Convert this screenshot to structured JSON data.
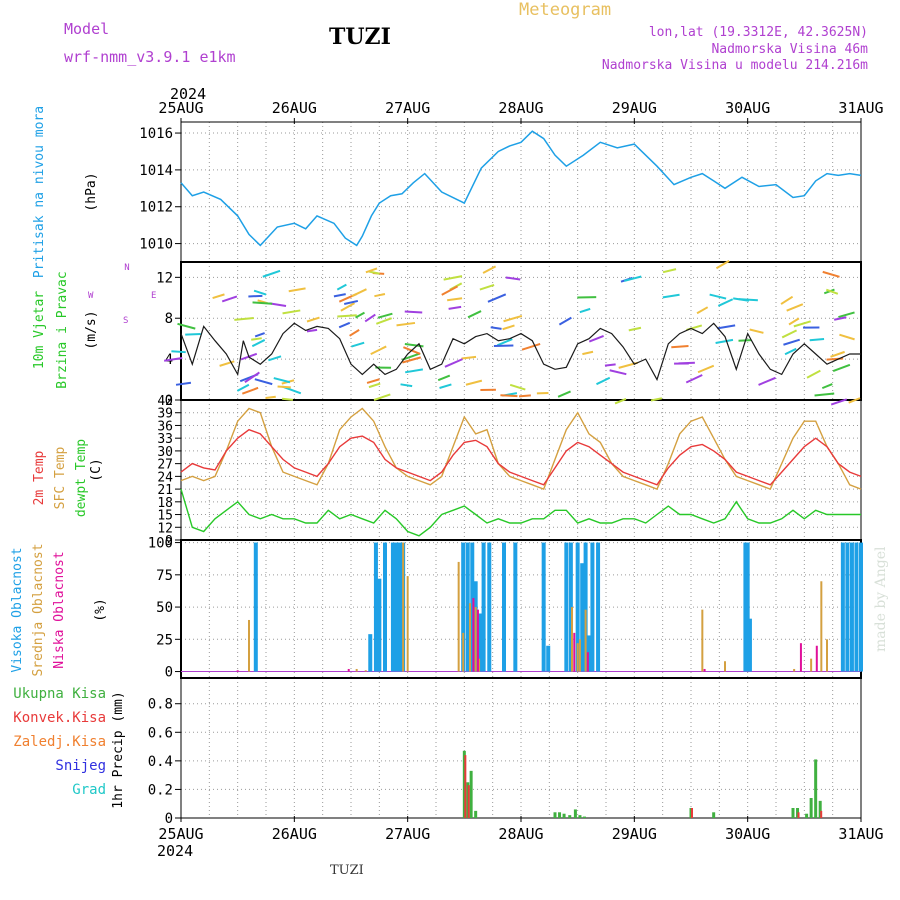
{
  "header": {
    "model_label": "Model",
    "model_name": "wrf-nmm_v3.9.1  e1km",
    "station": "TUZI",
    "product": "Meteogram",
    "lonlat": "lon,lat (19.3312E, 42.3625N)",
    "elevation": "Nadmorska Visina 46m",
    "model_elevation": "Nadmorska Visina u modelu 214.216m"
  },
  "footer": {
    "station": "TUZI",
    "credit": "made by Angel"
  },
  "colors": {
    "pressure": "#1ea0e6",
    "temp2m": "#e83a3a",
    "sfc": "#d4a040",
    "dew": "#28c828",
    "high": "#1ea0e6",
    "mid": "#d4a040",
    "low": "#e0109a",
    "total": "#40b040",
    "conv": "#e83a3a",
    "frozen": "#f08030",
    "snow": "#3030e0",
    "hail": "#20c8c8",
    "purple": "#b040d0",
    "gold": "#e8c060"
  },
  "chart_data": [
    {
      "type": "line",
      "title": "",
      "ylabel": [
        "Pritisak na nivou mora",
        "(hPa)"
      ],
      "xlabel": "",
      "x_ticks": [
        "25AUG",
        "26AUG",
        "27AUG",
        "28AUG",
        "29AUG",
        "30AUG",
        "31AUG"
      ],
      "year": "2024",
      "ylim": [
        1009,
        1016.6
      ],
      "yticks": [
        1010,
        1012,
        1014,
        1016
      ],
      "grid": true,
      "series": [
        {
          "name": "",
          "x": [
            0,
            0.1,
            0.2,
            0.35,
            0.5,
            0.6,
            0.7,
            0.85,
            1.0,
            1.1,
            1.2,
            1.35,
            1.45,
            1.55,
            1.6,
            1.68,
            1.75,
            1.85,
            1.95,
            2.05,
            2.15,
            2.3,
            2.5,
            2.65,
            2.8,
            2.9,
            3.0,
            3.1,
            3.2,
            3.3,
            3.4,
            3.55,
            3.7,
            3.85,
            4.0,
            4.1,
            4.2,
            4.35,
            4.5,
            4.6,
            4.7,
            4.8,
            4.95,
            5.1,
            5.25,
            5.4,
            5.5,
            5.6,
            5.7,
            5.8,
            5.9,
            6.0
          ],
          "values": [
            1013.3,
            1012.6,
            1012.8,
            1012.4,
            1011.5,
            1010.5,
            1009.9,
            1010.9,
            1011.1,
            1010.8,
            1011.5,
            1011.1,
            1010.3,
            1009.9,
            1010.4,
            1011.5,
            1012.2,
            1012.6,
            1012.7,
            1013.3,
            1013.8,
            1012.8,
            1012.2,
            1014.1,
            1015.0,
            1015.3,
            1015.5,
            1016.1,
            1015.7,
            1014.8,
            1014.2,
            1014.8,
            1015.5,
            1015.2,
            1015.4,
            1014.8,
            1014.2,
            1013.2,
            1013.6,
            1013.8,
            1013.4,
            1013.0,
            1013.6,
            1013.1,
            1013.2,
            1012.5,
            1012.6,
            1013.4,
            1013.8,
            1013.7,
            1013.8,
            1013.7
          ]
        }
      ]
    },
    {
      "type": "line",
      "title": "",
      "ylabel": [
        "10m Vjetar",
        "Brzina i Pravac",
        "(m/s)"
      ],
      "compass": [
        "N",
        "W",
        "E",
        "S"
      ],
      "ylim": [
        0,
        13.5
      ],
      "yticks": [
        0,
        4,
        8,
        12
      ],
      "grid": true,
      "series": [
        {
          "name": "",
          "x": [
            0,
            0.1,
            0.2,
            0.3,
            0.4,
            0.5,
            0.55,
            0.6,
            0.7,
            0.8,
            0.9,
            1.0,
            1.1,
            1.2,
            1.3,
            1.4,
            1.5,
            1.6,
            1.7,
            1.8,
            1.9,
            2.0,
            2.1,
            2.2,
            2.3,
            2.4,
            2.5,
            2.6,
            2.7,
            2.8,
            2.9,
            3.0,
            3.1,
            3.2,
            3.3,
            3.4,
            3.5,
            3.6,
            3.7,
            3.8,
            3.9,
            4.0,
            4.1,
            4.2,
            4.3,
            4.4,
            4.5,
            4.6,
            4.7,
            4.8,
            4.9,
            5.0,
            5.1,
            5.2,
            5.3,
            5.4,
            5.5,
            5.6,
            5.7,
            5.8,
            5.9,
            6.0
          ],
          "values": [
            6.5,
            3.5,
            7.2,
            5.8,
            4.5,
            2.5,
            5.8,
            4.2,
            3.5,
            4.5,
            6.5,
            7.5,
            6.8,
            7.2,
            7.0,
            6.0,
            3.5,
            2.5,
            3.5,
            2.5,
            3.0,
            4.5,
            5.5,
            3.0,
            3.5,
            6.0,
            5.5,
            6.2,
            6.5,
            5.8,
            6.0,
            6.5,
            5.8,
            3.5,
            3.0,
            3.2,
            5.5,
            6.0,
            7.0,
            6.5,
            5.2,
            3.5,
            4.0,
            2.0,
            5.5,
            6.5,
            7.0,
            6.5,
            7.5,
            6.2,
            3.0,
            6.5,
            4.5,
            3.0,
            2.5,
            4.5,
            5.5,
            4.5,
            3.5,
            4.0,
            4.5,
            4.5
          ]
        }
      ]
    },
    {
      "type": "line",
      "title": "",
      "ylabel": [
        "2m Temp",
        "SFC Temp",
        "dewpt Temp",
        "(C)"
      ],
      "ylim": [
        9,
        42
      ],
      "yticks": [
        9,
        12,
        15,
        18,
        21,
        24,
        27,
        30,
        33,
        36,
        39,
        42
      ],
      "grid": true,
      "series": [
        {
          "name": "2m Temp",
          "x": [
            0,
            0.1,
            0.2,
            0.3,
            0.4,
            0.5,
            0.6,
            0.7,
            0.8,
            0.9,
            1.0,
            1.1,
            1.2,
            1.3,
            1.4,
            1.5,
            1.6,
            1.7,
            1.8,
            1.9,
            2.0,
            2.1,
            2.2,
            2.3,
            2.4,
            2.5,
            2.6,
            2.7,
            2.8,
            2.9,
            3.0,
            3.1,
            3.2,
            3.3,
            3.4,
            3.5,
            3.6,
            3.7,
            3.8,
            3.9,
            4.0,
            4.1,
            4.2,
            4.3,
            4.4,
            4.5,
            4.6,
            4.7,
            4.8,
            4.9,
            5.0,
            5.1,
            5.2,
            5.3,
            5.4,
            5.5,
            5.6,
            5.7,
            5.8,
            5.9,
            6.0
          ],
          "values": [
            25,
            27,
            26,
            25.5,
            30,
            33,
            35,
            34,
            31,
            28,
            26,
            25,
            24,
            27,
            31,
            33,
            33.5,
            32,
            28,
            26,
            25,
            24,
            23,
            25,
            29,
            32,
            32.5,
            31,
            27,
            25,
            24,
            23,
            22,
            26,
            30,
            32,
            31,
            29,
            27,
            25,
            24,
            23,
            22,
            26,
            29,
            31,
            31.5,
            30,
            28,
            25,
            24,
            23,
            22,
            25,
            28,
            31,
            33,
            31,
            27,
            25,
            24
          ]
        },
        {
          "name": "SFC Temp",
          "x": [
            0,
            0.1,
            0.2,
            0.3,
            0.4,
            0.5,
            0.6,
            0.7,
            0.8,
            0.9,
            1.0,
            1.1,
            1.2,
            1.3,
            1.4,
            1.5,
            1.6,
            1.7,
            1.8,
            1.9,
            2.0,
            2.1,
            2.2,
            2.3,
            2.4,
            2.5,
            2.6,
            2.7,
            2.8,
            2.9,
            3.0,
            3.1,
            3.2,
            3.3,
            3.4,
            3.5,
            3.6,
            3.7,
            3.8,
            3.9,
            4.0,
            4.1,
            4.2,
            4.3,
            4.4,
            4.5,
            4.6,
            4.7,
            4.8,
            4.9,
            5.0,
            5.1,
            5.2,
            5.3,
            5.4,
            5.5,
            5.6,
            5.7,
            5.8,
            5.9,
            6.0
          ],
          "values": [
            23,
            24,
            23,
            24,
            30,
            37,
            40,
            39,
            31,
            25,
            24,
            23,
            22,
            27,
            35,
            38,
            40,
            37,
            31,
            26,
            24,
            23,
            22,
            24,
            31,
            38,
            34,
            35,
            27,
            24,
            23,
            22,
            21,
            28,
            35,
            39,
            34,
            32,
            27,
            24,
            23,
            22,
            21,
            27,
            34,
            37,
            38,
            33,
            28,
            24,
            23,
            22,
            21,
            27,
            33,
            37,
            37,
            31,
            27,
            22,
            21
          ]
        },
        {
          "name": "dewpt Temp",
          "x": [
            0,
            0.1,
            0.2,
            0.3,
            0.4,
            0.5,
            0.6,
            0.7,
            0.8,
            0.9,
            1.0,
            1.1,
            1.2,
            1.3,
            1.4,
            1.5,
            1.6,
            1.7,
            1.8,
            1.9,
            2.0,
            2.1,
            2.2,
            2.3,
            2.4,
            2.5,
            2.6,
            2.7,
            2.8,
            2.9,
            3.0,
            3.1,
            3.2,
            3.3,
            3.4,
            3.5,
            3.6,
            3.7,
            3.8,
            3.9,
            4.0,
            4.1,
            4.2,
            4.3,
            4.4,
            4.5,
            4.6,
            4.7,
            4.8,
            4.9,
            5.0,
            5.1,
            5.2,
            5.3,
            5.4,
            5.5,
            5.6,
            5.7,
            5.8,
            5.9,
            6.0
          ],
          "values": [
            21,
            12,
            11,
            14,
            16,
            18,
            15,
            14,
            15,
            14,
            14,
            13,
            13,
            16,
            14,
            15,
            14,
            13,
            16,
            14,
            11,
            10,
            12,
            15,
            16,
            17,
            15,
            13,
            14,
            13,
            13,
            14,
            14,
            16,
            16,
            13,
            14,
            13,
            13,
            14,
            14,
            13,
            15,
            17,
            15,
            15,
            14,
            13,
            14,
            18,
            14,
            13,
            13,
            14,
            16,
            14,
            16,
            15,
            15,
            15,
            15
          ]
        }
      ]
    },
    {
      "type": "bar",
      "title": "",
      "ylabel": [
        "Visoka Oblacnost",
        "Srednja Oblacnost",
        "Niska Oblacnost",
        "(%)"
      ],
      "ylim": [
        -5,
        102
      ],
      "yticks": [
        0,
        25,
        50,
        75,
        100
      ],
      "grid": true,
      "series": [
        {
          "name": "Visoka Oblacnost",
          "x": [
            0.66,
            1.67,
            1.72,
            1.75,
            1.8,
            1.87,
            1.9,
            1.93,
            1.96,
            2.49,
            2.53,
            2.57,
            2.6,
            2.64,
            2.67,
            2.72,
            2.85,
            2.95,
            3.2,
            3.24,
            3.4,
            3.44,
            3.5,
            3.54,
            3.57,
            3.6,
            3.63,
            3.68,
            4.98,
            5.0,
            5.02,
            5.84,
            5.88,
            5.92,
            5.96,
            6.0
          ],
          "values": [
            100,
            29,
            100,
            72,
            100,
            100,
            100,
            100,
            100,
            100,
            100,
            100,
            70,
            45,
            100,
            100,
            100,
            100,
            100,
            20,
            100,
            100,
            100,
            84,
            100,
            28,
            100,
            100,
            100,
            100,
            41,
            100,
            100,
            100,
            100,
            100
          ]
        },
        {
          "name": "Srednja Oblacnost",
          "x": [
            0.6,
            1.55,
            1.63,
            1.96,
            2.0,
            2.45,
            2.49,
            2.55,
            2.6,
            2.63,
            3.45,
            3.5,
            3.52,
            3.57,
            4.6,
            4.8,
            5.41,
            5.56,
            5.65,
            5.7
          ],
          "values": [
            40,
            2,
            1,
            100,
            74,
            85,
            30,
            53,
            50,
            10,
            50,
            22,
            25,
            48,
            48,
            8,
            2,
            10,
            70,
            25
          ]
        },
        {
          "name": "Niska Oblacnost",
          "x": [
            0.5,
            1.48,
            2.58,
            2.62,
            3.47,
            3.59,
            4.62,
            5.47,
            5.61
          ],
          "values": [
            1,
            2,
            57,
            48,
            30,
            15,
            2,
            22,
            20
          ]
        }
      ]
    },
    {
      "type": "bar",
      "title": "",
      "ylabel": [
        "1hr Precip (mm)"
      ],
      "legend": [
        "Ukupna Kisa",
        "Konvek.Kisa",
        "Zaledj.Kisa",
        "Snijeg",
        "Grad"
      ],
      "x_ticks": [
        "25AUG",
        "26AUG",
        "27AUG",
        "28AUG",
        "29AUG",
        "30AUG",
        "31AUG"
      ],
      "year": "2024",
      "ylim": [
        0,
        0.98
      ],
      "yticks": [
        0,
        0.2,
        0.4,
        0.6,
        0.8
      ],
      "grid": true,
      "series": [
        {
          "name": "Ukupna Kisa",
          "x": [
            2.5,
            2.53,
            2.56,
            2.6,
            3.3,
            3.34,
            3.38,
            3.43,
            3.48,
            3.52,
            3.56,
            4.5,
            4.7,
            5.4,
            5.44,
            5.52,
            5.56,
            5.6,
            5.64
          ],
          "values": [
            0.47,
            0.25,
            0.33,
            0.05,
            0.04,
            0.04,
            0.03,
            0.02,
            0.06,
            0.02,
            0.01,
            0.07,
            0.04,
            0.07,
            0.07,
            0.03,
            0.14,
            0.41,
            0.12
          ]
        },
        {
          "name": "Konvek.Kisa",
          "x": [
            2.5,
            2.53,
            4.5,
            5.44,
            5.64
          ],
          "values": [
            0.44,
            0.23,
            0.07,
            0.04,
            0.05
          ]
        }
      ]
    }
  ]
}
